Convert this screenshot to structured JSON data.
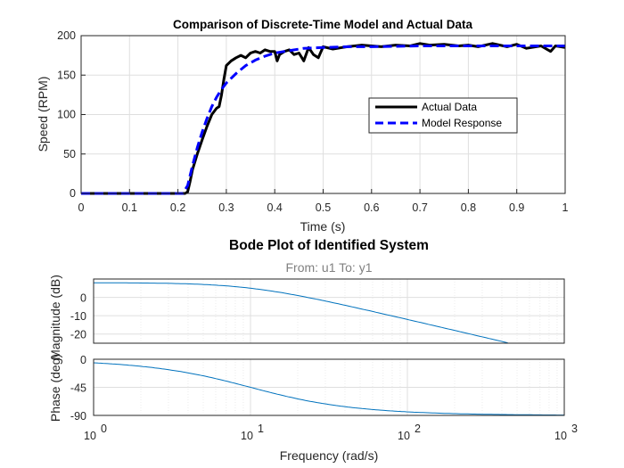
{
  "chart_data": [
    {
      "type": "line",
      "title": "Comparison of Discrete-Time Model and Actual Data",
      "xlabel": "Time (s)",
      "ylabel": "Speed (RPM)",
      "xlim": [
        0,
        1
      ],
      "ylim": [
        0,
        200
      ],
      "xticks": [
        "0",
        "0.1",
        "0.2",
        "0.3",
        "0.4",
        "0.5",
        "0.6",
        "0.7",
        "0.8",
        "0.9",
        "1"
      ],
      "yticks": [
        "0",
        "50",
        "100",
        "150",
        "200"
      ],
      "grid": true,
      "legend_position": "right",
      "series": [
        {
          "name": "Actual Data",
          "color": "#000000",
          "style": "solid",
          "x": [
            0,
            0.1,
            0.2,
            0.215,
            0.22,
            0.225,
            0.23,
            0.24,
            0.25,
            0.26,
            0.27,
            0.28,
            0.285,
            0.29,
            0.295,
            0.3,
            0.31,
            0.32,
            0.33,
            0.34,
            0.35,
            0.36,
            0.37,
            0.38,
            0.39,
            0.4,
            0.405,
            0.41,
            0.42,
            0.43,
            0.44,
            0.45,
            0.46,
            0.47,
            0.48,
            0.49,
            0.5,
            0.52,
            0.55,
            0.58,
            0.6,
            0.62,
            0.65,
            0.68,
            0.7,
            0.72,
            0.75,
            0.78,
            0.8,
            0.82,
            0.85,
            0.88,
            0.9,
            0.92,
            0.95,
            0.97,
            0.98,
            1.0
          ],
          "y": [
            0,
            0,
            0,
            0,
            2,
            15,
            30,
            50,
            68,
            85,
            100,
            108,
            110,
            125,
            145,
            162,
            168,
            172,
            175,
            172,
            178,
            180,
            178,
            182,
            180,
            180,
            168,
            176,
            180,
            182,
            176,
            178,
            168,
            185,
            176,
            172,
            186,
            183,
            186,
            188,
            187,
            186,
            188,
            187,
            190,
            188,
            189,
            187,
            188,
            186,
            190,
            186,
            189,
            184,
            187,
            180,
            187,
            185
          ]
        },
        {
          "name": "Model Response",
          "color": "#0000ff",
          "style": "dashed",
          "x": [
            0,
            0.1,
            0.2,
            0.21,
            0.22,
            0.23,
            0.24,
            0.25,
            0.26,
            0.27,
            0.28,
            0.29,
            0.3,
            0.32,
            0.34,
            0.36,
            0.38,
            0.4,
            0.43,
            0.46,
            0.5,
            0.55,
            0.6,
            0.7,
            0.8,
            0.9,
            1.0
          ],
          "y": [
            0,
            0,
            0,
            0,
            10,
            35,
            58,
            78,
            95,
            110,
            122,
            132,
            140,
            152,
            162,
            169,
            174,
            178,
            181,
            184,
            185,
            186,
            186,
            187,
            187,
            187,
            187
          ]
        }
      ]
    },
    {
      "type": "line",
      "title": "Bode Plot of Identified System",
      "subtitle": "From: u1  To: y1",
      "xlabel": "Frequency  (rad/s)",
      "ylabel_mag": "Magnitude (dB)",
      "ylabel_phase": "Phase (deg)",
      "x_scale": "log",
      "xlim": [
        1,
        1000
      ],
      "xticks": [
        1,
        10,
        100,
        1000
      ],
      "xtick_labels": [
        "10",
        "10",
        "10",
        "10"
      ],
      "xtick_exponents": [
        "0",
        "1",
        "2",
        "3"
      ],
      "mag_ylim": [
        -25,
        10
      ],
      "mag_yticks": [
        0,
        -10,
        -20
      ],
      "mag_ytick_labels": [
        "0",
        "-10",
        "-20"
      ],
      "phase_ylim": [
        -90,
        0
      ],
      "phase_yticks": [
        0,
        -45,
        -90
      ],
      "phase_ytick_labels": [
        "0",
        "-45",
        "-90"
      ],
      "line_color": "#0072bd",
      "grid": true,
      "pole_rad_s": 10,
      "dc_gain_db": 8,
      "magnitude": {
        "x": [
          1,
          2,
          5,
          10,
          20,
          50,
          100,
          200,
          500,
          1000
        ],
        "y": [
          8,
          7.9,
          7.4,
          5.0,
          1.0,
          -6.2,
          -12.0,
          -18.0,
          -26.0,
          -32.0
        ]
      },
      "phase": {
        "x": [
          1,
          2,
          5,
          10,
          20,
          50,
          100,
          200,
          500,
          1000
        ],
        "y": [
          -5.7,
          -11.3,
          -26.6,
          -45,
          -63.4,
          -78.7,
          -84.3,
          -87.1,
          -88.9,
          -89.4
        ]
      }
    }
  ]
}
